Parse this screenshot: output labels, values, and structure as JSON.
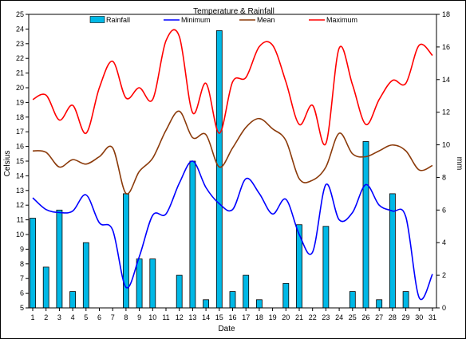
{
  "chart_data": {
    "type": "bar+line",
    "title": "Temperature & Rainfall",
    "xlabel": "Date",
    "ylabel_left": "Celsius",
    "ylabel_right": "mm",
    "x": [
      1,
      2,
      3,
      4,
      5,
      6,
      7,
      8,
      9,
      10,
      11,
      12,
      13,
      14,
      15,
      16,
      17,
      18,
      19,
      20,
      21,
      22,
      23,
      24,
      25,
      26,
      27,
      28,
      29,
      30,
      31
    ],
    "ylim_left": [
      5,
      25
    ],
    "yticks_left": [
      5,
      6,
      7,
      8,
      9,
      10,
      11,
      12,
      13,
      14,
      15,
      16,
      17,
      18,
      19,
      20,
      21,
      22,
      23,
      24,
      25
    ],
    "ylim_right": [
      0,
      18
    ],
    "yticks_right": [
      0,
      2,
      4,
      6,
      8,
      10,
      12,
      14,
      16,
      18
    ],
    "legend_position": "top",
    "grid": false,
    "rainfall": {
      "name": "Rainfall",
      "color": "#00b8e6",
      "axis": "right",
      "values": [
        5.5,
        2.5,
        6.0,
        1.0,
        4.0,
        0,
        0,
        7.0,
        3.0,
        3.0,
        0,
        2.0,
        9.0,
        0.5,
        17.0,
        1.0,
        2.0,
        0.5,
        0,
        1.5,
        5.1,
        0,
        5.0,
        0,
        1.0,
        10.2,
        0.5,
        7.0,
        1.0,
        0,
        0
      ]
    },
    "series": [
      {
        "name": "Minimum",
        "color": "#0000ff",
        "axis": "left",
        "values": [
          12.5,
          11.7,
          11.5,
          11.6,
          12.7,
          10.8,
          10.3,
          6.4,
          8.5,
          11.3,
          11.4,
          13.5,
          15.0,
          13.2,
          12.1,
          11.7,
          13.8,
          12.8,
          11.4,
          12.4,
          10.0,
          8.8,
          13.4,
          11.0,
          11.5,
          13.4,
          12.0,
          11.6,
          11.2,
          5.7,
          7.3
        ]
      },
      {
        "name": "Mean",
        "color": "#8b3a0a",
        "axis": "left",
        "values": [
          15.7,
          15.6,
          14.6,
          15.1,
          14.8,
          15.3,
          15.9,
          12.8,
          14.3,
          15.2,
          17.1,
          18.4,
          16.6,
          16.8,
          14.6,
          15.9,
          17.3,
          17.9,
          17.2,
          16.4,
          13.8,
          13.7,
          14.6,
          16.9,
          15.5,
          15.3,
          15.7,
          16.1,
          15.7,
          14.4,
          14.7
        ]
      },
      {
        "name": "Maximum",
        "color": "#ff0000",
        "axis": "left",
        "values": [
          19.2,
          19.5,
          17.8,
          18.8,
          16.9,
          20.0,
          21.8,
          19.3,
          20.0,
          19.2,
          23.2,
          23.5,
          18.3,
          20.3,
          16.9,
          20.4,
          20.7,
          22.8,
          22.9,
          20.4,
          17.5,
          18.8,
          16.2,
          22.7,
          20.2,
          17.5,
          19.2,
          20.5,
          20.3,
          22.9,
          22.2
        ]
      }
    ]
  }
}
